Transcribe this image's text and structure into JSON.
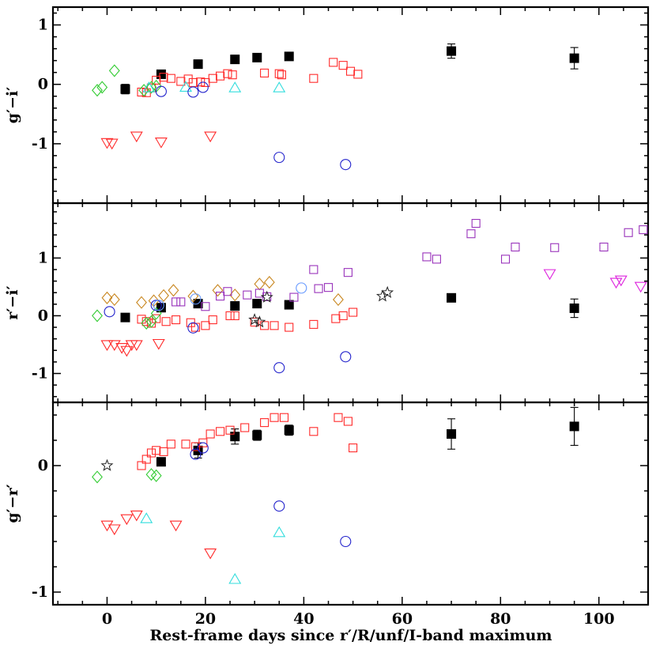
{
  "chart_data": {
    "type": "scatter",
    "xlabel": "Rest-frame days since r′/R/unf/I-band maximum",
    "xlim": [
      -11,
      110
    ],
    "xticks": [
      0,
      20,
      40,
      60,
      80,
      100
    ],
    "xticks_labels": [
      "0",
      "20",
      "40",
      "60",
      "80",
      "100"
    ],
    "panels": [
      {
        "id": "gi",
        "ylabel": "g′−i′",
        "ylim": [
          -2.0,
          1.3
        ],
        "yticks": [
          1,
          0,
          -1
        ],
        "yticks_labels": [
          "1",
          "0",
          "-1"
        ],
        "series": [
          {
            "marker": "square-filled",
            "color": "#000000",
            "points": [
              [
                3.7,
                -0.08
              ],
              [
                11,
                0.17
              ],
              [
                18.5,
                0.34
              ],
              [
                26,
                0.42
              ],
              [
                30.5,
                0.45
              ],
              [
                37,
                0.47
              ],
              [
                70,
                0.56
              ],
              [
                95,
                0.44
              ]
            ],
            "errors": [
              0.08,
              0.05,
              0.07,
              0.07,
              0.04,
              0.04,
              0.12,
              0.18
            ]
          },
          {
            "marker": "square-open",
            "color": "#ff2a2a",
            "points": [
              [
                7,
                -0.13
              ],
              [
                8,
                -0.14
              ],
              [
                9,
                -0.06
              ],
              [
                10,
                0.07
              ],
              [
                11.5,
                0.12
              ],
              [
                13,
                0.1
              ],
              [
                15,
                0.05
              ],
              [
                16.5,
                0.09
              ],
              [
                17.5,
                0.03
              ],
              [
                19,
                0.04
              ],
              [
                20,
                0.03
              ],
              [
                21.5,
                0.1
              ],
              [
                23,
                0.14
              ],
              [
                24.5,
                0.18
              ],
              [
                25.5,
                0.16
              ],
              [
                32,
                0.19
              ],
              [
                35,
                0.18
              ],
              [
                35.5,
                0.16
              ],
              [
                42,
                0.1
              ],
              [
                46,
                0.37
              ],
              [
                48,
                0.32
              ],
              [
                49.5,
                0.22
              ],
              [
                51,
                0.17
              ]
            ]
          },
          {
            "marker": "triangle-down",
            "color": "#ff2a2a",
            "points": [
              [
                0,
                -0.98
              ],
              [
                1,
                -0.99
              ],
              [
                6,
                -0.87
              ],
              [
                11,
                -0.97
              ],
              [
                21,
                -0.87
              ]
            ]
          },
          {
            "marker": "diamond",
            "color": "#33cc33",
            "points": [
              [
                -2,
                -0.1
              ],
              [
                -1,
                -0.05
              ],
              [
                1.5,
                0.23
              ],
              [
                7.5,
                -0.1
              ],
              [
                9,
                -0.05
              ],
              [
                10,
                -0.03
              ]
            ]
          },
          {
            "marker": "triangle-up",
            "color": "#33dddd",
            "points": [
              [
                8.5,
                -0.06
              ],
              [
                16,
                -0.05
              ],
              [
                26,
                -0.06
              ],
              [
                35,
                -0.06
              ]
            ]
          },
          {
            "marker": "circle",
            "color": "#2222cc",
            "points": [
              [
                11,
                -0.12
              ],
              [
                17.5,
                -0.13
              ],
              [
                19.5,
                -0.05
              ],
              [
                35,
                -1.23
              ],
              [
                48.5,
                -1.35
              ]
            ]
          }
        ]
      },
      {
        "id": "ri",
        "ylabel": "r′−i′",
        "ylim": [
          -1.5,
          1.95
        ],
        "yticks": [
          1,
          0,
          -1
        ],
        "yticks_labels": [
          "1",
          "0",
          "-1"
        ],
        "series": [
          {
            "marker": "square-filled",
            "color": "#000000",
            "points": [
              [
                3.7,
                -0.03
              ],
              [
                11,
                0.14
              ],
              [
                18.5,
                0.21
              ],
              [
                26,
                0.17
              ],
              [
                30.5,
                0.21
              ],
              [
                37,
                0.19
              ],
              [
                70,
                0.31
              ],
              [
                95,
                0.13
              ]
            ],
            "errors": [
              0.05,
              0.05,
              0.05,
              0.05,
              0.05,
              0.05,
              0.06,
              0.16
            ]
          },
          {
            "marker": "square-open",
            "color": "#ff2a2a",
            "points": [
              [
                7,
                -0.06
              ],
              [
                8,
                -0.1
              ],
              [
                9,
                -0.13
              ],
              [
                10,
                -0.05
              ],
              [
                12,
                -0.1
              ],
              [
                14,
                -0.07
              ],
              [
                17,
                -0.12
              ],
              [
                18,
                -0.2
              ],
              [
                20,
                -0.17
              ],
              [
                21.5,
                -0.07
              ],
              [
                25,
                0.0
              ],
              [
                26,
                0.0
              ],
              [
                30,
                -0.11
              ],
              [
                32,
                -0.17
              ],
              [
                34,
                -0.17
              ],
              [
                37,
                -0.2
              ],
              [
                42,
                -0.15
              ],
              [
                46.5,
                -0.05
              ],
              [
                48,
                0.0
              ],
              [
                50,
                0.06
              ]
            ]
          },
          {
            "marker": "triangle-down",
            "color": "#ff2a2a",
            "points": [
              [
                0,
                -0.5
              ],
              [
                1.5,
                -0.5
              ],
              [
                3,
                -0.55
              ],
              [
                4,
                -0.6
              ],
              [
                5,
                -0.5
              ],
              [
                6,
                -0.5
              ],
              [
                10.5,
                -0.48
              ]
            ]
          },
          {
            "marker": "diamond",
            "color": "#33cc33",
            "points": [
              [
                -2,
                0.0
              ],
              [
                8,
                -0.13
              ],
              [
                9,
                -0.1
              ],
              [
                10,
                0.04
              ]
            ]
          },
          {
            "marker": "diamond",
            "color": "#c8861e",
            "points": [
              [
                0,
                0.31
              ],
              [
                1.5,
                0.28
              ],
              [
                7,
                0.23
              ],
              [
                9.5,
                0.26
              ],
              [
                11.5,
                0.35
              ],
              [
                13.5,
                0.44
              ],
              [
                17.5,
                0.34
              ],
              [
                22.5,
                0.44
              ],
              [
                26,
                0.36
              ],
              [
                31,
                0.55
              ],
              [
                33,
                0.58
              ],
              [
                47,
                0.28
              ]
            ]
          },
          {
            "marker": "square-open",
            "color": "#9933bb",
            "points": [
              [
                14,
                0.24
              ],
              [
                15,
                0.24
              ],
              [
                20,
                0.16
              ],
              [
                23,
                0.34
              ],
              [
                24.5,
                0.42
              ],
              [
                28.5,
                0.36
              ],
              [
                31,
                0.39
              ],
              [
                32.5,
                0.33
              ],
              [
                38,
                0.32
              ],
              [
                42,
                0.8
              ],
              [
                43,
                0.47
              ],
              [
                45,
                0.49
              ],
              [
                49,
                0.75
              ],
              [
                65,
                1.02
              ],
              [
                67,
                0.98
              ],
              [
                74,
                1.42
              ],
              [
                75,
                1.6
              ],
              [
                81,
                0.98
              ],
              [
                83,
                1.19
              ],
              [
                91,
                1.18
              ],
              [
                101,
                1.19
              ],
              [
                106,
                1.44
              ],
              [
                109,
                1.49
              ]
            ]
          },
          {
            "marker": "triangle-down",
            "color": "#dd22dd",
            "points": [
              [
                90,
                0.73
              ],
              [
                103.5,
                0.58
              ],
              [
                104.5,
                0.62
              ],
              [
                108.5,
                0.51
              ]
            ]
          },
          {
            "marker": "circle",
            "color": "#2222cc",
            "points": [
              [
                0.5,
                0.07
              ],
              [
                10,
                0.18
              ],
              [
                17.5,
                -0.21
              ],
              [
                35,
                -0.9
              ],
              [
                48.5,
                -0.71
              ]
            ]
          },
          {
            "marker": "circle",
            "color": "#6699ff",
            "points": [
              [
                10.5,
                0.18
              ],
              [
                18,
                0.29
              ],
              [
                39.5,
                0.48
              ]
            ]
          },
          {
            "marker": "star",
            "color": "#222222",
            "points": [
              [
                30,
                -0.07
              ],
              [
                31,
                -0.11
              ],
              [
                32.5,
                0.32
              ],
              [
                56,
                0.34
              ],
              [
                57,
                0.4
              ]
            ]
          }
        ]
      },
      {
        "id": "gr",
        "ylabel": "g′−r′",
        "ylim": [
          -1.1,
          0.5
        ],
        "yticks": [
          0,
          -1
        ],
        "yticks_labels": [
          "0",
          "-1"
        ],
        "series": [
          {
            "marker": "square-filled",
            "color": "#000000",
            "points": [
              [
                11,
                0.03
              ],
              [
                18.5,
                0.12
              ],
              [
                26,
                0.23
              ],
              [
                30.5,
                0.24
              ],
              [
                37,
                0.28
              ],
              [
                70,
                0.25
              ],
              [
                95,
                0.31
              ]
            ],
            "errors": [
              0.03,
              0.06,
              0.06,
              0.04,
              0.04,
              0.12,
              0.15
            ]
          },
          {
            "marker": "square-open",
            "color": "#ff2a2a",
            "points": [
              [
                7,
                0.0
              ],
              [
                8,
                0.05
              ],
              [
                9,
                0.1
              ],
              [
                10,
                0.12
              ],
              [
                11.5,
                0.11
              ],
              [
                13,
                0.17
              ],
              [
                16,
                0.17
              ],
              [
                18,
                0.15
              ],
              [
                19.5,
                0.18
              ],
              [
                21,
                0.25
              ],
              [
                23,
                0.27
              ],
              [
                25,
                0.28
              ],
              [
                28,
                0.3
              ],
              [
                32,
                0.34
              ],
              [
                34,
                0.38
              ],
              [
                36,
                0.38
              ],
              [
                42,
                0.27
              ],
              [
                47,
                0.38
              ],
              [
                49,
                0.35
              ],
              [
                50,
                0.14
              ]
            ]
          },
          {
            "marker": "triangle-down",
            "color": "#ff2a2a",
            "points": [
              [
                0,
                -0.47
              ],
              [
                1.5,
                -0.5
              ],
              [
                4,
                -0.42
              ],
              [
                6,
                -0.39
              ],
              [
                14,
                -0.47
              ],
              [
                21,
                -0.69
              ]
            ]
          },
          {
            "marker": "diamond",
            "color": "#33cc33",
            "points": [
              [
                -2,
                -0.09
              ],
              [
                9,
                -0.07
              ],
              [
                10,
                -0.08
              ]
            ]
          },
          {
            "marker": "triangle-up",
            "color": "#33dddd",
            "points": [
              [
                8,
                -0.42
              ],
              [
                26,
                -0.9
              ],
              [
                35,
                -0.53
              ]
            ]
          },
          {
            "marker": "circle",
            "color": "#2222cc",
            "points": [
              [
                18,
                0.09
              ],
              [
                19.5,
                0.14
              ],
              [
                35,
                -0.32
              ],
              [
                48.5,
                -0.6
              ]
            ]
          },
          {
            "marker": "star",
            "color": "#222222",
            "points": [
              [
                0,
                0.0
              ]
            ]
          }
        ]
      }
    ]
  }
}
